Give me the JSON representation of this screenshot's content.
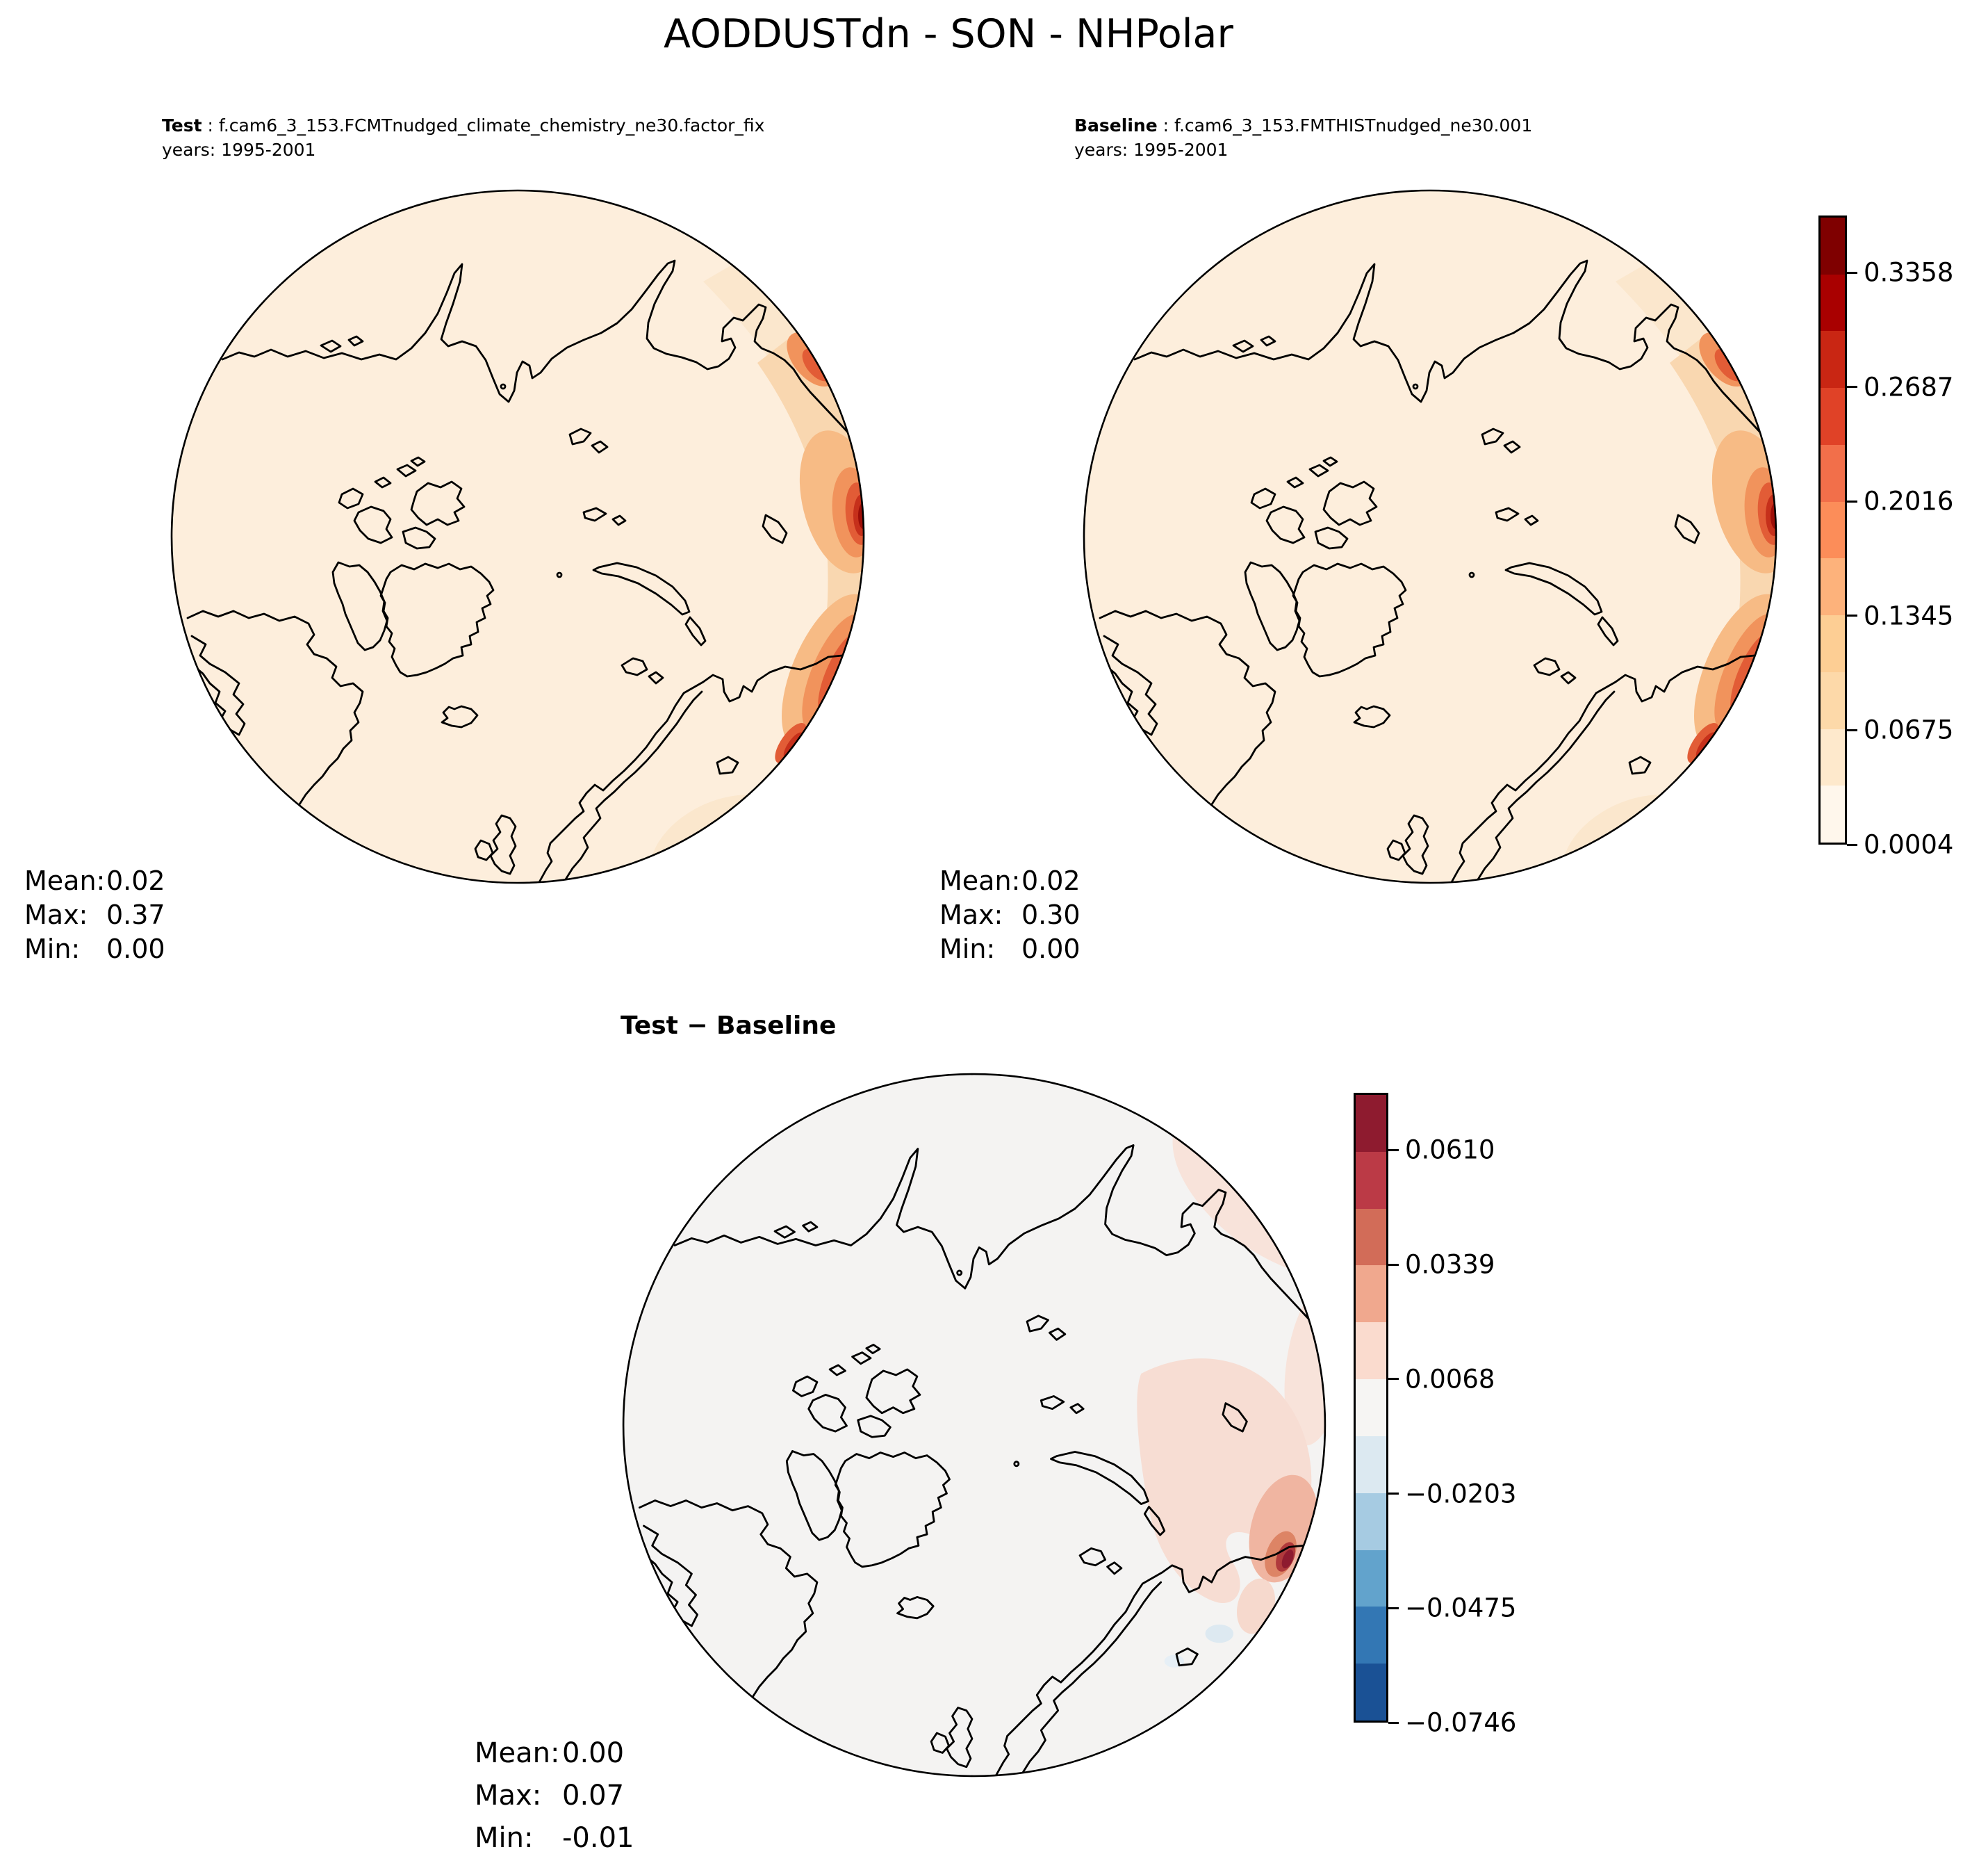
{
  "title": "AODDUSTdn - SON - NHPolar",
  "panels": {
    "test": {
      "label": "Test",
      "separator": " : ",
      "dataset": "f.cam6_3_153.FCMTnudged_climate_chemistry_ne30.factor_fix",
      "years": "years: 1995-2001",
      "stats": {
        "rows": [
          {
            "label": "Mean:",
            "value": "0.02"
          },
          {
            "label": "Max:",
            "value": "0.37"
          },
          {
            "label": "Min:",
            "value": "0.00"
          }
        ]
      }
    },
    "baseline": {
      "label": "Baseline",
      "separator": " : ",
      "dataset": "f.cam6_3_153.FMTHISTnudged_ne30.001",
      "years": "years: 1995-2001",
      "stats": {
        "rows": [
          {
            "label": "Mean:",
            "value": "0.02"
          },
          {
            "label": "Max:",
            "value": "0.30"
          },
          {
            "label": "Min:",
            "value": "0.00"
          }
        ]
      }
    },
    "difference": {
      "title": "Test − Baseline",
      "stats": {
        "rows": [
          {
            "label": "Mean:",
            "value": "0.00"
          },
          {
            "label": "Max:",
            "value": "0.07"
          },
          {
            "label": "Min:",
            "value": "-0.01"
          }
        ]
      }
    }
  },
  "colorbars": {
    "absolute": {
      "ticks": [
        "0.3358",
        "0.2687",
        "0.2016",
        "0.1345",
        "0.0675",
        "0.0004"
      ],
      "colors": [
        "#7f0000",
        "#a90000",
        "#c92613",
        "#e04227",
        "#f26f4a",
        "#fc8d59",
        "#fdb27b",
        "#fdce94",
        "#fdd9a9",
        "#fee9cc",
        "#fff7ec"
      ]
    },
    "difference": {
      "ticks": [
        "0.0610",
        "0.0339",
        "0.0068",
        "−0.0203",
        "−0.0475",
        "−0.0746"
      ],
      "colors": [
        "#8e1b2f",
        "#bb3a46",
        "#d26c58",
        "#f0a88e",
        "#fadbce",
        "#f6f5f3",
        "#dce9f1",
        "#a6cbe2",
        "#62a3cc",
        "#3377b4",
        "#1a5195"
      ]
    }
  },
  "chart_data": {
    "type": "heatmap",
    "subtype": "polar_stereographic_contour_maps",
    "title": "AODDUSTdn - SON - NHPolar",
    "variable": "AODDUSTdn",
    "season": "SON",
    "region": "NHPolar",
    "panels": [
      {
        "name": "Test",
        "dataset": "f.cam6_3_153.FCMTnudged_climate_chemistry_ne30.factor_fix",
        "years": "1995-2001",
        "mean": 0.02,
        "max": 0.37,
        "min": 0.0,
        "colorbar_ticks": [
          0.3358,
          0.2687,
          0.2016,
          0.1345,
          0.0675,
          0.0004
        ],
        "colormap": "sequential OrRd-like, 11 discrete bins, high values along eastern (right) rim"
      },
      {
        "name": "Baseline",
        "dataset": "f.cam6_3_153.FMTHISTnudged_ne30.001",
        "years": "1995-2001",
        "mean": 0.02,
        "max": 0.3,
        "min": 0.0,
        "colorbar_ticks": [
          0.3358,
          0.2687,
          0.2016,
          0.1345,
          0.0675,
          0.0004
        ],
        "colormap": "sequential OrRd-like, 11 discrete bins, high values along eastern (right) rim"
      },
      {
        "name": "Test − Baseline",
        "mean": 0.0,
        "max": 0.07,
        "min": -0.01,
        "colorbar_ticks": [
          0.061,
          0.0339,
          0.0068,
          -0.0203,
          -0.0475,
          -0.0746
        ],
        "colormap": "diverging red-white-blue, 11 discrete bins, small positive patches along eastern rim"
      }
    ]
  }
}
